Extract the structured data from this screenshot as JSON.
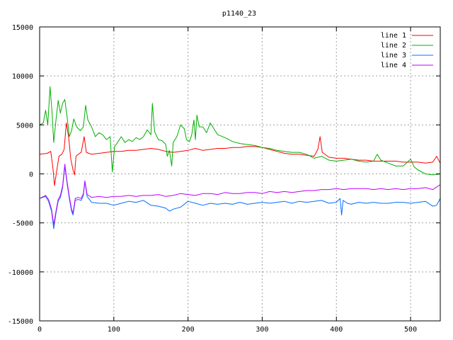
{
  "chart_data": {
    "type": "line",
    "title": "p1140_23",
    "xlabel": "",
    "ylabel": "",
    "xlim": [
      0,
      540
    ],
    "ylim": [
      -15000,
      15000
    ],
    "x_ticks": [
      0,
      100,
      200,
      300,
      400,
      500
    ],
    "y_ticks": [
      -15000,
      -10000,
      -5000,
      0,
      5000,
      10000,
      15000
    ],
    "grid": true,
    "legend_position": "top-right",
    "series": [
      {
        "name": "line 1",
        "color": "#ff0000",
        "points": [
          [
            0,
            2000
          ],
          [
            10,
            2100
          ],
          [
            15,
            2300
          ],
          [
            18,
            500
          ],
          [
            20,
            -1200
          ],
          [
            23,
            300
          ],
          [
            26,
            1800
          ],
          [
            30,
            2000
          ],
          [
            33,
            2500
          ],
          [
            36,
            5200
          ],
          [
            39,
            3800
          ],
          [
            42,
            1500
          ],
          [
            45,
            400
          ],
          [
            47,
            -100
          ],
          [
            49,
            1800
          ],
          [
            52,
            2000
          ],
          [
            56,
            2200
          ],
          [
            60,
            3800
          ],
          [
            63,
            2200
          ],
          [
            70,
            2000
          ],
          [
            80,
            2100
          ],
          [
            90,
            2200
          ],
          [
            100,
            2300
          ],
          [
            110,
            2300
          ],
          [
            120,
            2400
          ],
          [
            130,
            2400
          ],
          [
            140,
            2500
          ],
          [
            150,
            2600
          ],
          [
            160,
            2500
          ],
          [
            170,
            2300
          ],
          [
            180,
            2200
          ],
          [
            190,
            2300
          ],
          [
            200,
            2400
          ],
          [
            210,
            2600
          ],
          [
            220,
            2400
          ],
          [
            230,
            2500
          ],
          [
            240,
            2600
          ],
          [
            250,
            2600
          ],
          [
            260,
            2700
          ],
          [
            270,
            2700
          ],
          [
            280,
            2800
          ],
          [
            290,
            2800
          ],
          [
            300,
            2700
          ],
          [
            310,
            2500
          ],
          [
            320,
            2300
          ],
          [
            330,
            2100
          ],
          [
            340,
            2000
          ],
          [
            350,
            2000
          ],
          [
            360,
            1900
          ],
          [
            370,
            1800
          ],
          [
            375,
            2500
          ],
          [
            378,
            3800
          ],
          [
            381,
            2200
          ],
          [
            390,
            1700
          ],
          [
            400,
            1600
          ],
          [
            410,
            1600
          ],
          [
            420,
            1500
          ],
          [
            430,
            1400
          ],
          [
            440,
            1400
          ],
          [
            450,
            1300
          ],
          [
            460,
            1300
          ],
          [
            470,
            1300
          ],
          [
            480,
            1300
          ],
          [
            490,
            1200
          ],
          [
            500,
            1200
          ],
          [
            510,
            1200
          ],
          [
            520,
            1100
          ],
          [
            530,
            1200
          ],
          [
            535,
            1800
          ],
          [
            540,
            1100
          ]
        ]
      },
      {
        "name": "line 2",
        "color": "#00b000",
        "points": [
          [
            0,
            5000
          ],
          [
            5,
            5200
          ],
          [
            8,
            6500
          ],
          [
            11,
            5000
          ],
          [
            14,
            8900
          ],
          [
            17,
            6000
          ],
          [
            19,
            3200
          ],
          [
            22,
            5500
          ],
          [
            25,
            7500
          ],
          [
            28,
            6200
          ],
          [
            31,
            7200
          ],
          [
            34,
            7600
          ],
          [
            37,
            5800
          ],
          [
            40,
            3800
          ],
          [
            43,
            4400
          ],
          [
            46,
            5600
          ],
          [
            50,
            4800
          ],
          [
            55,
            4400
          ],
          [
            59,
            4800
          ],
          [
            62,
            7000
          ],
          [
            65,
            5500
          ],
          [
            70,
            4800
          ],
          [
            75,
            3800
          ],
          [
            80,
            4200
          ],
          [
            85,
            4000
          ],
          [
            90,
            3500
          ],
          [
            95,
            3800
          ],
          [
            98,
            200
          ],
          [
            101,
            2800
          ],
          [
            105,
            3200
          ],
          [
            110,
            3800
          ],
          [
            115,
            3200
          ],
          [
            120,
            3500
          ],
          [
            125,
            3300
          ],
          [
            130,
            3700
          ],
          [
            135,
            3500
          ],
          [
            140,
            3800
          ],
          [
            145,
            4500
          ],
          [
            150,
            4000
          ],
          [
            152,
            7200
          ],
          [
            155,
            4300
          ],
          [
            160,
            3500
          ],
          [
            165,
            3400
          ],
          [
            170,
            3000
          ],
          [
            172,
            1800
          ],
          [
            175,
            2400
          ],
          [
            178,
            800
          ],
          [
            180,
            3200
          ],
          [
            185,
            3800
          ],
          [
            190,
            5000
          ],
          [
            195,
            4600
          ],
          [
            198,
            3500
          ],
          [
            202,
            3300
          ],
          [
            205,
            4000
          ],
          [
            208,
            5500
          ],
          [
            210,
            3500
          ],
          [
            212,
            6000
          ],
          [
            215,
            4800
          ],
          [
            220,
            4800
          ],
          [
            225,
            4200
          ],
          [
            230,
            5200
          ],
          [
            235,
            4600
          ],
          [
            240,
            4000
          ],
          [
            250,
            3700
          ],
          [
            260,
            3300
          ],
          [
            270,
            3100
          ],
          [
            280,
            3000
          ],
          [
            290,
            2900
          ],
          [
            300,
            2700
          ],
          [
            310,
            2600
          ],
          [
            320,
            2400
          ],
          [
            330,
            2300
          ],
          [
            340,
            2200
          ],
          [
            350,
            2200
          ],
          [
            360,
            2000
          ],
          [
            370,
            1600
          ],
          [
            380,
            1800
          ],
          [
            390,
            1400
          ],
          [
            400,
            1300
          ],
          [
            410,
            1400
          ],
          [
            420,
            1500
          ],
          [
            430,
            1300
          ],
          [
            440,
            1200
          ],
          [
            450,
            1300
          ],
          [
            455,
            2000
          ],
          [
            460,
            1400
          ],
          [
            470,
            1100
          ],
          [
            480,
            800
          ],
          [
            490,
            800
          ],
          [
            500,
            1500
          ],
          [
            505,
            700
          ],
          [
            510,
            400
          ],
          [
            520,
            0
          ],
          [
            530,
            -100
          ],
          [
            540,
            0
          ]
        ]
      },
      {
        "name": "line 3",
        "color": "#0070ff",
        "points": [
          [
            0,
            -2500
          ],
          [
            8,
            -2300
          ],
          [
            12,
            -2800
          ],
          [
            16,
            -3800
          ],
          [
            19,
            -5600
          ],
          [
            22,
            -4000
          ],
          [
            25,
            -2800
          ],
          [
            28,
            -2400
          ],
          [
            31,
            -1400
          ],
          [
            34,
            800
          ],
          [
            37,
            -1000
          ],
          [
            40,
            -2500
          ],
          [
            43,
            -3800
          ],
          [
            45,
            -4200
          ],
          [
            48,
            -2700
          ],
          [
            52,
            -2600
          ],
          [
            56,
            -2700
          ],
          [
            59,
            -2200
          ],
          [
            61,
            -800
          ],
          [
            64,
            -2300
          ],
          [
            70,
            -2900
          ],
          [
            80,
            -3000
          ],
          [
            90,
            -3000
          ],
          [
            100,
            -3200
          ],
          [
            110,
            -3000
          ],
          [
            120,
            -2800
          ],
          [
            130,
            -2900
          ],
          [
            140,
            -2700
          ],
          [
            150,
            -3200
          ],
          [
            160,
            -3300
          ],
          [
            170,
            -3500
          ],
          [
            175,
            -3800
          ],
          [
            180,
            -3600
          ],
          [
            190,
            -3400
          ],
          [
            200,
            -2800
          ],
          [
            210,
            -3000
          ],
          [
            220,
            -3200
          ],
          [
            230,
            -3000
          ],
          [
            240,
            -3100
          ],
          [
            250,
            -3000
          ],
          [
            260,
            -3100
          ],
          [
            270,
            -2900
          ],
          [
            280,
            -3100
          ],
          [
            290,
            -3000
          ],
          [
            300,
            -2900
          ],
          [
            310,
            -3000
          ],
          [
            320,
            -2900
          ],
          [
            330,
            -2800
          ],
          [
            340,
            -3000
          ],
          [
            350,
            -2800
          ],
          [
            360,
            -2900
          ],
          [
            370,
            -2800
          ],
          [
            380,
            -2700
          ],
          [
            390,
            -3000
          ],
          [
            400,
            -2900
          ],
          [
            405,
            -2500
          ],
          [
            407,
            -4200
          ],
          [
            409,
            -2700
          ],
          [
            415,
            -3000
          ],
          [
            420,
            -3100
          ],
          [
            430,
            -2900
          ],
          [
            440,
            -3000
          ],
          [
            450,
            -2900
          ],
          [
            460,
            -3000
          ],
          [
            470,
            -3000
          ],
          [
            480,
            -2900
          ],
          [
            490,
            -2900
          ],
          [
            500,
            -3000
          ],
          [
            510,
            -2900
          ],
          [
            520,
            -2800
          ],
          [
            530,
            -3300
          ],
          [
            535,
            -3200
          ],
          [
            540,
            -2500
          ]
        ]
      },
      {
        "name": "line 4",
        "color": "#c000ff",
        "points": [
          [
            0,
            -2500
          ],
          [
            8,
            -2200
          ],
          [
            12,
            -2600
          ],
          [
            16,
            -3600
          ],
          [
            19,
            -5200
          ],
          [
            22,
            -3800
          ],
          [
            25,
            -2600
          ],
          [
            28,
            -2200
          ],
          [
            31,
            -1200
          ],
          [
            34,
            1000
          ],
          [
            37,
            -800
          ],
          [
            40,
            -2300
          ],
          [
            43,
            -3600
          ],
          [
            45,
            -4000
          ],
          [
            48,
            -2500
          ],
          [
            52,
            -2400
          ],
          [
            56,
            -2500
          ],
          [
            59,
            -2000
          ],
          [
            61,
            -700
          ],
          [
            64,
            -2100
          ],
          [
            70,
            -2400
          ],
          [
            80,
            -2300
          ],
          [
            90,
            -2400
          ],
          [
            100,
            -2300
          ],
          [
            110,
            -2300
          ],
          [
            120,
            -2200
          ],
          [
            130,
            -2300
          ],
          [
            140,
            -2200
          ],
          [
            150,
            -2200
          ],
          [
            160,
            -2100
          ],
          [
            170,
            -2300
          ],
          [
            180,
            -2200
          ],
          [
            190,
            -2000
          ],
          [
            200,
            -2100
          ],
          [
            210,
            -2200
          ],
          [
            220,
            -2000
          ],
          [
            230,
            -2000
          ],
          [
            240,
            -2100
          ],
          [
            250,
            -1900
          ],
          [
            260,
            -2000
          ],
          [
            270,
            -2000
          ],
          [
            280,
            -1900
          ],
          [
            290,
            -1900
          ],
          [
            300,
            -2000
          ],
          [
            310,
            -1800
          ],
          [
            320,
            -1900
          ],
          [
            330,
            -1800
          ],
          [
            340,
            -1900
          ],
          [
            350,
            -1800
          ],
          [
            360,
            -1700
          ],
          [
            370,
            -1700
          ],
          [
            380,
            -1600
          ],
          [
            390,
            -1600
          ],
          [
            400,
            -1500
          ],
          [
            410,
            -1600
          ],
          [
            420,
            -1500
          ],
          [
            430,
            -1500
          ],
          [
            440,
            -1500
          ],
          [
            450,
            -1600
          ],
          [
            460,
            -1500
          ],
          [
            470,
            -1600
          ],
          [
            480,
            -1500
          ],
          [
            490,
            -1600
          ],
          [
            500,
            -1500
          ],
          [
            510,
            -1500
          ],
          [
            520,
            -1400
          ],
          [
            530,
            -1600
          ],
          [
            540,
            -1100
          ]
        ]
      }
    ]
  }
}
